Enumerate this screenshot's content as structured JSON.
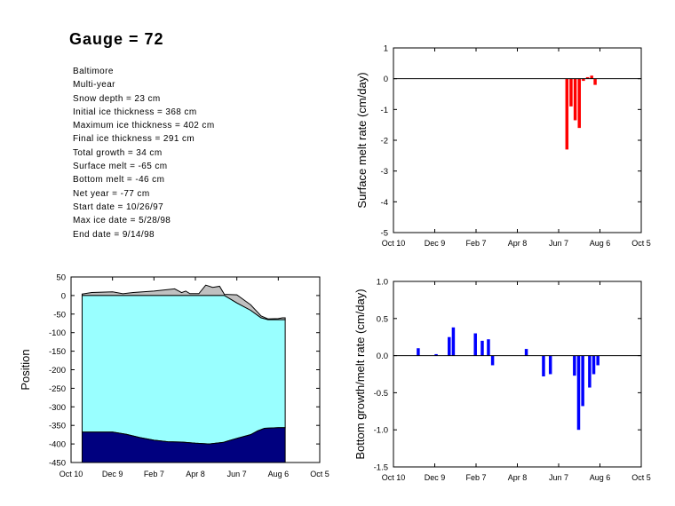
{
  "header": {
    "title": "Gauge = 72"
  },
  "info": [
    "Baltimore",
    "Multi-year",
    "Snow depth = 23 cm",
    "Initial ice thickness = 368 cm",
    "Maximum ice thickness = 402 cm",
    "Final ice thickness = 291 cm",
    "Total growth = 34 cm",
    "Surface melt = -65 cm",
    "Bottom melt = -46 cm",
    "Net year = -77 cm",
    "Start date = 10/26/97",
    "Max ice date = 5/28/98",
    "End date = 9/14/98"
  ],
  "colors": {
    "surface_bars": "#ff0000",
    "bottom_bars": "#0000ff",
    "snow": "#c0c0c0",
    "ice": "#99ffff",
    "ice_bottom": "#00007f"
  },
  "chart_data": [
    {
      "id": "surface",
      "type": "bar",
      "ylabel": "Surface melt rate (cm/day)",
      "xlabel": "",
      "title": "",
      "xticks": [
        "Oct 10",
        "Dec 9",
        "Feb 7",
        "Apr 8",
        "Jun 7",
        "Aug 6",
        "Oct 5"
      ],
      "xlim": [
        0,
        360
      ],
      "ylim": [
        -5,
        1
      ],
      "yticks": [
        1,
        0,
        -1,
        -2,
        -3,
        -4,
        -5
      ],
      "bar_width_days": 4.5,
      "bars": [
        {
          "x": 252,
          "y": -2.3
        },
        {
          "x": 258,
          "y": -0.9
        },
        {
          "x": 264,
          "y": -1.35
        },
        {
          "x": 270,
          "y": -1.6
        },
        {
          "x": 276,
          "y": -0.07
        },
        {
          "x": 282,
          "y": 0.05
        },
        {
          "x": 288,
          "y": 0.1
        },
        {
          "x": 293,
          "y": -0.2
        }
      ]
    },
    {
      "id": "bottom",
      "type": "bar",
      "ylabel": "Bottom growth/melt rate (cm/day)",
      "xlabel": "",
      "title": "",
      "xticks": [
        "Oct 10",
        "Dec 9",
        "Feb 7",
        "Apr 8",
        "Jun 7",
        "Aug 6",
        "Oct 5"
      ],
      "xlim": [
        0,
        360
      ],
      "ylim": [
        -1.5,
        1.0
      ],
      "yticks": [
        "1.0",
        "0.5",
        "0.0",
        "-0.5",
        "-1.0",
        "-1.5"
      ],
      "bar_width_days": 4.5,
      "bars": [
        {
          "x": 36,
          "y": 0.1
        },
        {
          "x": 62,
          "y": 0.02
        },
        {
          "x": 81,
          "y": 0.25
        },
        {
          "x": 87,
          "y": 0.38
        },
        {
          "x": 119,
          "y": 0.3
        },
        {
          "x": 129,
          "y": 0.2
        },
        {
          "x": 138,
          "y": 0.22
        },
        {
          "x": 144,
          "y": -0.13
        },
        {
          "x": 193,
          "y": 0.09
        },
        {
          "x": 218,
          "y": -0.28
        },
        {
          "x": 228,
          "y": -0.25
        },
        {
          "x": 263,
          "y": -0.27
        },
        {
          "x": 269,
          "y": -1.0
        },
        {
          "x": 275,
          "y": -0.68
        },
        {
          "x": 285,
          "y": -0.43
        },
        {
          "x": 291,
          "y": -0.25
        },
        {
          "x": 297,
          "y": -0.13
        }
      ]
    },
    {
      "id": "position",
      "type": "area",
      "ylabel": "Position",
      "xlabel": "",
      "title": "",
      "xticks": [
        "Oct 10",
        "Dec 9",
        "Feb 7",
        "Apr 8",
        "Jun 7",
        "Aug 6",
        "Oct 5"
      ],
      "xlim": [
        0,
        360
      ],
      "ylim": [
        -450,
        50
      ],
      "yticks": [
        50,
        0,
        -50,
        -100,
        -150,
        -200,
        -250,
        -300,
        -350,
        -400,
        -450
      ],
      "series": [
        {
          "role": "snow_top",
          "x": [
            16,
            30,
            60,
            75,
            90,
            120,
            150,
            160,
            166,
            172,
            185,
            195,
            205,
            215,
            222,
            240,
            260,
            275,
            285,
            300,
            306,
            310
          ],
          "y": [
            4,
            8,
            10,
            5,
            8,
            12,
            18,
            8,
            12,
            5,
            5,
            28,
            22,
            25,
            3,
            2,
            -25,
            -55,
            -63,
            -62,
            -60,
            -60
          ]
        },
        {
          "role": "ice_top",
          "x": [
            16,
            60,
            100,
            150,
            200,
            222,
            240,
            260,
            275,
            285,
            300,
            310
          ],
          "y": [
            0,
            0,
            0,
            0,
            0,
            0,
            -20,
            -40,
            -60,
            -65,
            -65,
            -65
          ]
        },
        {
          "role": "ice_bottom",
          "x": [
            16,
            60,
            80,
            100,
            120,
            140,
            160,
            180,
            200,
            220,
            240,
            260,
            270,
            280,
            300,
            310
          ],
          "y": [
            -368,
            -368,
            -374,
            -383,
            -390,
            -394,
            -395,
            -398,
            -400,
            -396,
            -385,
            -375,
            -365,
            -358,
            -356,
            -356
          ]
        }
      ]
    }
  ]
}
